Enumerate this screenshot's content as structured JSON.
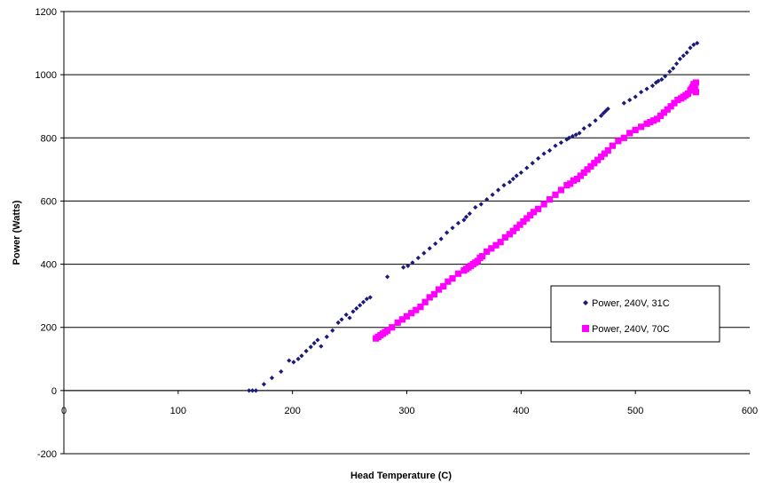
{
  "chart_data": {
    "type": "scatter",
    "title": "",
    "xlabel": "Head Temperature (C)",
    "ylabel": "Power (Watts)",
    "xlim": [
      0,
      600
    ],
    "ylim": [
      -200,
      1200
    ],
    "x_ticks": [
      0,
      100,
      200,
      300,
      400,
      500,
      600
    ],
    "y_ticks": [
      -200,
      0,
      200,
      400,
      600,
      800,
      1000,
      1200
    ],
    "grid": "horizontal",
    "legend_position": "right",
    "series": [
      {
        "name": "Power, 240V, 31C",
        "color": "#1a1a7a",
        "marker": "diamond",
        "points": [
          [
            162,
            0
          ],
          [
            165,
            0
          ],
          [
            168,
            0
          ],
          [
            175,
            20
          ],
          [
            182,
            40
          ],
          [
            190,
            60
          ],
          [
            197,
            95
          ],
          [
            201,
            90
          ],
          [
            205,
            100
          ],
          [
            208,
            110
          ],
          [
            212,
            125
          ],
          [
            216,
            138
          ],
          [
            219,
            150
          ],
          [
            222,
            160
          ],
          [
            225,
            140
          ],
          [
            230,
            170
          ],
          [
            235,
            190
          ],
          [
            240,
            215
          ],
          [
            243,
            225
          ],
          [
            247,
            240
          ],
          [
            250,
            230
          ],
          [
            253,
            250
          ],
          [
            256,
            260
          ],
          [
            259,
            270
          ],
          [
            262,
            280
          ],
          [
            265,
            290
          ],
          [
            268,
            295
          ],
          [
            283,
            360
          ],
          [
            297,
            390
          ],
          [
            301,
            395
          ],
          [
            305,
            405
          ],
          [
            310,
            420
          ],
          [
            315,
            435
          ],
          [
            320,
            450
          ],
          [
            325,
            465
          ],
          [
            330,
            480
          ],
          [
            335,
            500
          ],
          [
            340,
            515
          ],
          [
            345,
            530
          ],
          [
            350,
            540
          ],
          [
            352,
            550
          ],
          [
            355,
            560
          ],
          [
            360,
            580
          ],
          [
            365,
            590
          ],
          [
            370,
            605
          ],
          [
            375,
            620
          ],
          [
            380,
            635
          ],
          [
            385,
            650
          ],
          [
            390,
            660
          ],
          [
            393,
            670
          ],
          [
            396,
            680
          ],
          [
            400,
            690
          ],
          [
            405,
            705
          ],
          [
            410,
            720
          ],
          [
            415,
            735
          ],
          [
            420,
            750
          ],
          [
            425,
            760
          ],
          [
            430,
            775
          ],
          [
            435,
            785
          ],
          [
            440,
            795
          ],
          [
            442,
            800
          ],
          [
            445,
            805
          ],
          [
            448,
            810
          ],
          [
            451,
            815
          ],
          [
            455,
            830
          ],
          [
            460,
            840
          ],
          [
            465,
            855
          ],
          [
            470,
            870
          ],
          [
            472,
            878
          ],
          [
            474,
            885
          ],
          [
            476,
            892
          ],
          [
            490,
            910
          ],
          [
            495,
            920
          ],
          [
            500,
            930
          ],
          [
            505,
            945
          ],
          [
            510,
            955
          ],
          [
            515,
            965
          ],
          [
            518,
            975
          ],
          [
            520,
            980
          ],
          [
            523,
            985
          ],
          [
            526,
            995
          ],
          [
            530,
            1010
          ],
          [
            533,
            1020
          ],
          [
            536,
            1035
          ],
          [
            539,
            1050
          ],
          [
            542,
            1060
          ],
          [
            545,
            1070
          ],
          [
            548,
            1085
          ],
          [
            551,
            1095
          ],
          [
            554,
            1100
          ]
        ]
      },
      {
        "name": "Power, 240V, 70C",
        "color": "#ff00ff",
        "marker": "square",
        "points": [
          [
            273,
            165
          ],
          [
            275,
            170
          ],
          [
            277,
            175
          ],
          [
            279,
            180
          ],
          [
            281,
            185
          ],
          [
            283,
            190
          ],
          [
            287,
            200
          ],
          [
            292,
            215
          ],
          [
            296,
            225
          ],
          [
            300,
            235
          ],
          [
            304,
            245
          ],
          [
            308,
            255
          ],
          [
            312,
            265
          ],
          [
            316,
            280
          ],
          [
            320,
            295
          ],
          [
            324,
            305
          ],
          [
            328,
            320
          ],
          [
            332,
            330
          ],
          [
            336,
            345
          ],
          [
            340,
            355
          ],
          [
            345,
            370
          ],
          [
            350,
            380
          ],
          [
            352,
            385
          ],
          [
            354,
            390
          ],
          [
            356,
            395
          ],
          [
            358,
            400
          ],
          [
            360,
            405
          ],
          [
            362,
            410
          ],
          [
            364,
            420
          ],
          [
            366,
            425
          ],
          [
            370,
            440
          ],
          [
            374,
            450
          ],
          [
            378,
            460
          ],
          [
            382,
            470
          ],
          [
            386,
            485
          ],
          [
            390,
            495
          ],
          [
            393,
            505
          ],
          [
            396,
            515
          ],
          [
            399,
            525
          ],
          [
            402,
            535
          ],
          [
            405,
            545
          ],
          [
            408,
            555
          ],
          [
            411,
            565
          ],
          [
            415,
            575
          ],
          [
            420,
            590
          ],
          [
            425,
            605
          ],
          [
            430,
            620
          ],
          [
            435,
            635
          ],
          [
            440,
            650
          ],
          [
            443,
            655
          ],
          [
            446,
            665
          ],
          [
            449,
            670
          ],
          [
            452,
            680
          ],
          [
            455,
            690
          ],
          [
            458,
            700
          ],
          [
            461,
            710
          ],
          [
            464,
            720
          ],
          [
            467,
            730
          ],
          [
            470,
            740
          ],
          [
            473,
            750
          ],
          [
            476,
            760
          ],
          [
            480,
            775
          ],
          [
            485,
            790
          ],
          [
            490,
            800
          ],
          [
            495,
            815
          ],
          [
            500,
            825
          ],
          [
            505,
            835
          ],
          [
            510,
            845
          ],
          [
            513,
            850
          ],
          [
            516,
            855
          ],
          [
            519,
            860
          ],
          [
            522,
            870
          ],
          [
            525,
            880
          ],
          [
            528,
            890
          ],
          [
            531,
            900
          ],
          [
            534,
            910
          ],
          [
            537,
            920
          ],
          [
            540,
            925
          ],
          [
            542,
            930
          ],
          [
            544,
            935
          ],
          [
            546,
            940
          ],
          [
            548,
            950
          ],
          [
            549,
            955
          ],
          [
            550,
            960
          ],
          [
            551,
            965
          ],
          [
            551,
            970
          ],
          [
            552,
            960
          ],
          [
            552,
            955
          ],
          [
            553,
            945
          ],
          [
            553,
            975
          ]
        ]
      }
    ]
  }
}
